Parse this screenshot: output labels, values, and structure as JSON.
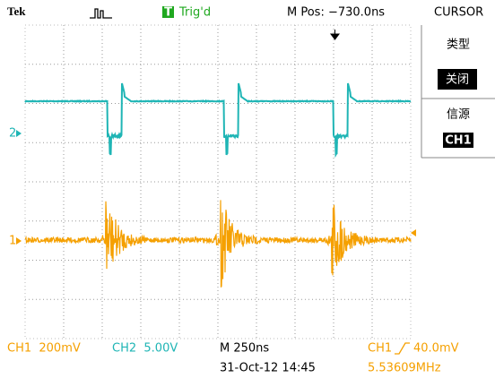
{
  "header": {
    "brand": "Tek",
    "trigger_icon": "T",
    "trigger_status": "Trig'd",
    "position": "M Pos: −730.0ns",
    "menu_title": "CURSOR"
  },
  "menu": [
    {
      "label": "类型",
      "value": "关闭"
    },
    {
      "label": "信源",
      "value": "CH1"
    }
  ],
  "markers": {
    "ch2": "2",
    "ch1": "1"
  },
  "status": {
    "ch1_scale": "CH1  200mV",
    "ch2_scale": "CH2  5.00V",
    "timebase": "M 250ns",
    "trigger_source": "CH1",
    "trigger_level": "40.0mV",
    "date": "31-Oct-12 14:45",
    "frequency": "5.53609MHz"
  }
}
